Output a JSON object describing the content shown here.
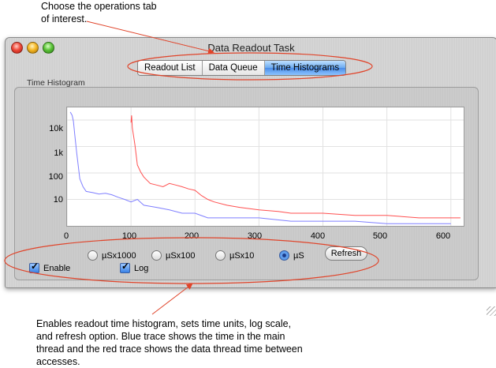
{
  "annotations": {
    "top": "Choose the operations tab of interest.",
    "bottom": "Enables readout time histogram, sets time units, log scale, and refresh option.  Blue trace shows the time in the main thread and the red trace shows the data thread time between accesses."
  },
  "window": {
    "title": "Data Readout Task"
  },
  "tabs": [
    {
      "label": "Readout List"
    },
    {
      "label": "Data Queue"
    },
    {
      "label": "Time Histograms",
      "active": true
    }
  ],
  "group": {
    "label": "Time Histogram"
  },
  "chart_data": {
    "type": "line",
    "title": "",
    "xlabel": "",
    "ylabel": "",
    "x_ticks": [
      "0",
      "100",
      "200",
      "300",
      "400",
      "500",
      "600"
    ],
    "y_ticks": [
      "10k",
      "1k",
      "100",
      "10"
    ],
    "xlim": [
      0,
      620
    ],
    "ylim": [
      1,
      30000
    ],
    "yscale": "log",
    "grid": true,
    "series": [
      {
        "color": "#7f7fff",
        "x": [
          5,
          8,
          10,
          12,
          15,
          20,
          25,
          30,
          40,
          50,
          60,
          70,
          80,
          90,
          100,
          110,
          120,
          140,
          160,
          180,
          200,
          220,
          250,
          300,
          350,
          400,
          450,
          500,
          550,
          600
        ],
        "y": [
          20000,
          15000,
          9000,
          3000,
          600,
          60,
          30,
          20,
          18,
          16,
          17,
          15,
          12,
          10,
          8,
          10,
          6,
          5,
          4,
          3,
          3,
          2,
          2,
          2,
          1.5,
          1.5,
          1.5,
          1.2,
          1.2,
          1.2
        ]
      },
      {
        "color": "#ff5050",
        "x": [
          100,
          101,
          102,
          104,
          106,
          108,
          110,
          115,
          120,
          130,
          140,
          150,
          160,
          170,
          180,
          190,
          200,
          210,
          220,
          230,
          250,
          270,
          300,
          330,
          350,
          400,
          450,
          500,
          550,
          600,
          615
        ],
        "y": [
          8000,
          15000,
          5000,
          2500,
          1200,
          500,
          200,
          110,
          70,
          40,
          35,
          30,
          40,
          35,
          30,
          25,
          22,
          14,
          10,
          8,
          6,
          5,
          4,
          3.5,
          3,
          3,
          2.5,
          2.5,
          2,
          2,
          2
        ]
      }
    ]
  },
  "units": [
    {
      "label": "µSx1000",
      "selected": false
    },
    {
      "label": "µSx100",
      "selected": false
    },
    {
      "label": "µSx10",
      "selected": false
    },
    {
      "label": "µS",
      "selected": true
    }
  ],
  "controls": {
    "refresh_label": "Refresh",
    "enable_label": "Enable",
    "log_label": "Log"
  },
  "colors": {
    "annotation_arrow": "#e0442a",
    "ellipse": "#e0442a",
    "blue_trace": "#7f7fff",
    "red_trace": "#ff5050"
  }
}
